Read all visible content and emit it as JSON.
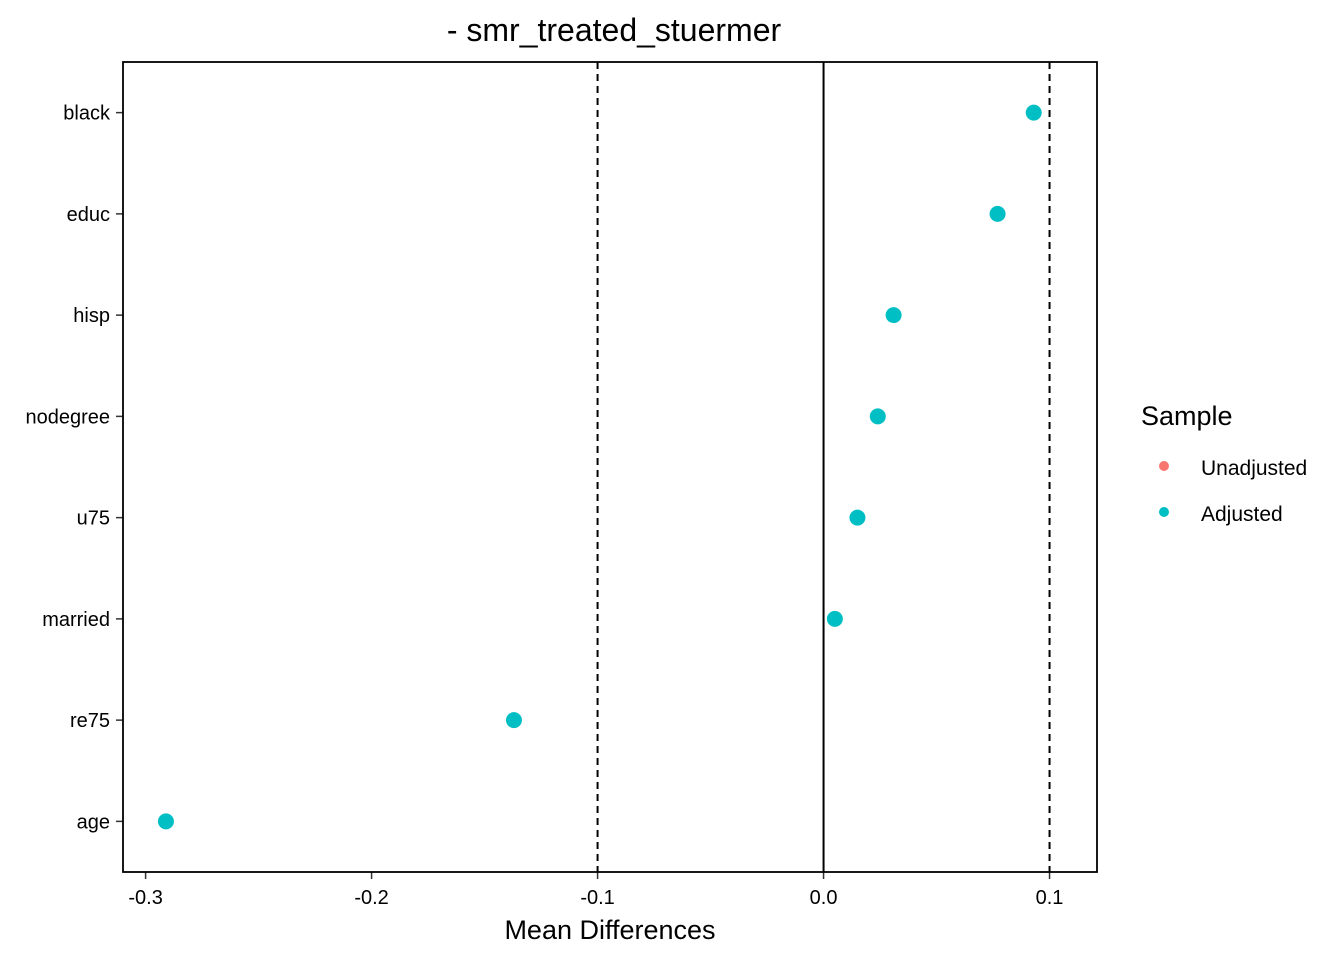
{
  "chart_data": {
    "type": "scatter",
    "title": "- smr_treated_stuermer",
    "xlabel": "Mean Differences",
    "ylabel": "",
    "xlim": [
      -0.31,
      0.121
    ],
    "xticks": [
      -0.3,
      -0.2,
      -0.1,
      0.0,
      0.1
    ],
    "xtick_labels": [
      "-0.3",
      "-0.2",
      "-0.1",
      "0.0",
      "0.1"
    ],
    "categories": [
      "black",
      "educ",
      "hisp",
      "nodegree",
      "u75",
      "married",
      "re75",
      "age"
    ],
    "reference_lines": [
      {
        "x": 0.0,
        "style": "solid"
      },
      {
        "x": -0.1,
        "style": "dashed"
      },
      {
        "x": 0.1,
        "style": "dashed"
      }
    ],
    "grid": false,
    "legend": {
      "title": "Sample",
      "position": "right",
      "entries": [
        {
          "name": "Unadjusted",
          "color": "#F8766D"
        },
        {
          "name": "Adjusted",
          "color": "#00BFC4"
        }
      ]
    },
    "series": [
      {
        "name": "Unadjusted",
        "color": "#F8766D",
        "points": []
      },
      {
        "name": "Adjusted",
        "color": "#00BFC4",
        "points": [
          {
            "category": "black",
            "value": 0.093
          },
          {
            "category": "educ",
            "value": 0.077
          },
          {
            "category": "hisp",
            "value": 0.031
          },
          {
            "category": "nodegree",
            "value": 0.024
          },
          {
            "category": "u75",
            "value": 0.015
          },
          {
            "category": "married",
            "value": 0.005
          },
          {
            "category": "re75",
            "value": -0.137
          },
          {
            "category": "age",
            "value": -0.291
          }
        ]
      }
    ]
  }
}
